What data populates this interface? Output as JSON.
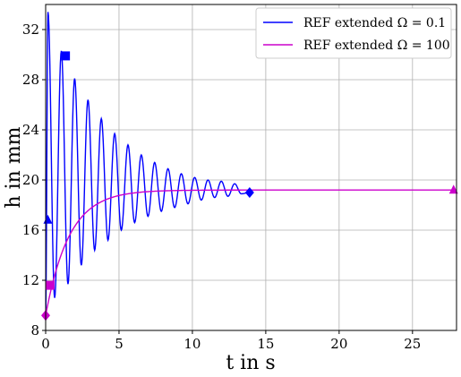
{
  "chart_data": {
    "type": "line",
    "title": "",
    "xlabel": "t in s",
    "ylabel": "h in mm",
    "xlim": [
      0,
      28
    ],
    "ylim": [
      8,
      34
    ],
    "x_ticks": [
      0,
      5,
      10,
      15,
      20,
      25
    ],
    "y_ticks": [
      8,
      12,
      16,
      20,
      24,
      28,
      32
    ],
    "grid": true,
    "legend_position": "top-right",
    "series": [
      {
        "name": "REF extended Ω = 0.1",
        "color": "#0000ff",
        "style": "damped-oscillation",
        "t_end": 13.9,
        "x_sample": [
          0.0,
          0.25,
          0.5,
          0.75,
          1.0,
          1.25,
          1.5,
          1.75,
          2.0,
          2.25,
          2.5,
          3.0,
          4.0,
          5.0,
          6.0,
          7.0,
          8.0,
          10.0,
          12.0,
          13.9
        ],
        "peak_values": [
          33.4,
          30.3,
          28.1,
          26.4,
          24.9,
          23.7,
          22.8,
          22.0,
          21.4,
          20.9,
          20.5,
          20.2,
          20.0,
          19.9,
          19.7
        ],
        "trough_values": [
          10.6,
          11.7,
          13.2,
          14.4,
          15.2,
          16.0,
          16.6,
          17.1,
          17.5,
          17.8,
          18.1,
          18.4,
          18.6,
          18.7,
          18.9
        ],
        "markers": [
          {
            "shape": "triangle",
            "x": 0.15,
            "y": 16.8
          },
          {
            "shape": "square",
            "x": 1.35,
            "y": 29.9
          },
          {
            "shape": "diamond",
            "x": 13.9,
            "y": 19.0
          }
        ]
      },
      {
        "name": "REF extended Ω = 100",
        "color": "#cc00cc",
        "style": "first-order-rise",
        "x": [
          0.0,
          0.3,
          1.0,
          2.0,
          3.0,
          4.0,
          5.0,
          6.0,
          8.0,
          10.0,
          15.0,
          20.0,
          27.8
        ],
        "y": [
          9.2,
          11.6,
          14.5,
          16.8,
          17.9,
          18.5,
          18.8,
          19.0,
          19.1,
          19.15,
          19.2,
          19.2,
          19.2
        ],
        "markers": [
          {
            "shape": "diamond",
            "x": 0.0,
            "y": 9.2
          },
          {
            "shape": "square",
            "x": 0.3,
            "y": 11.6
          },
          {
            "shape": "triangle",
            "x": 27.8,
            "y": 19.2
          }
        ]
      }
    ]
  }
}
